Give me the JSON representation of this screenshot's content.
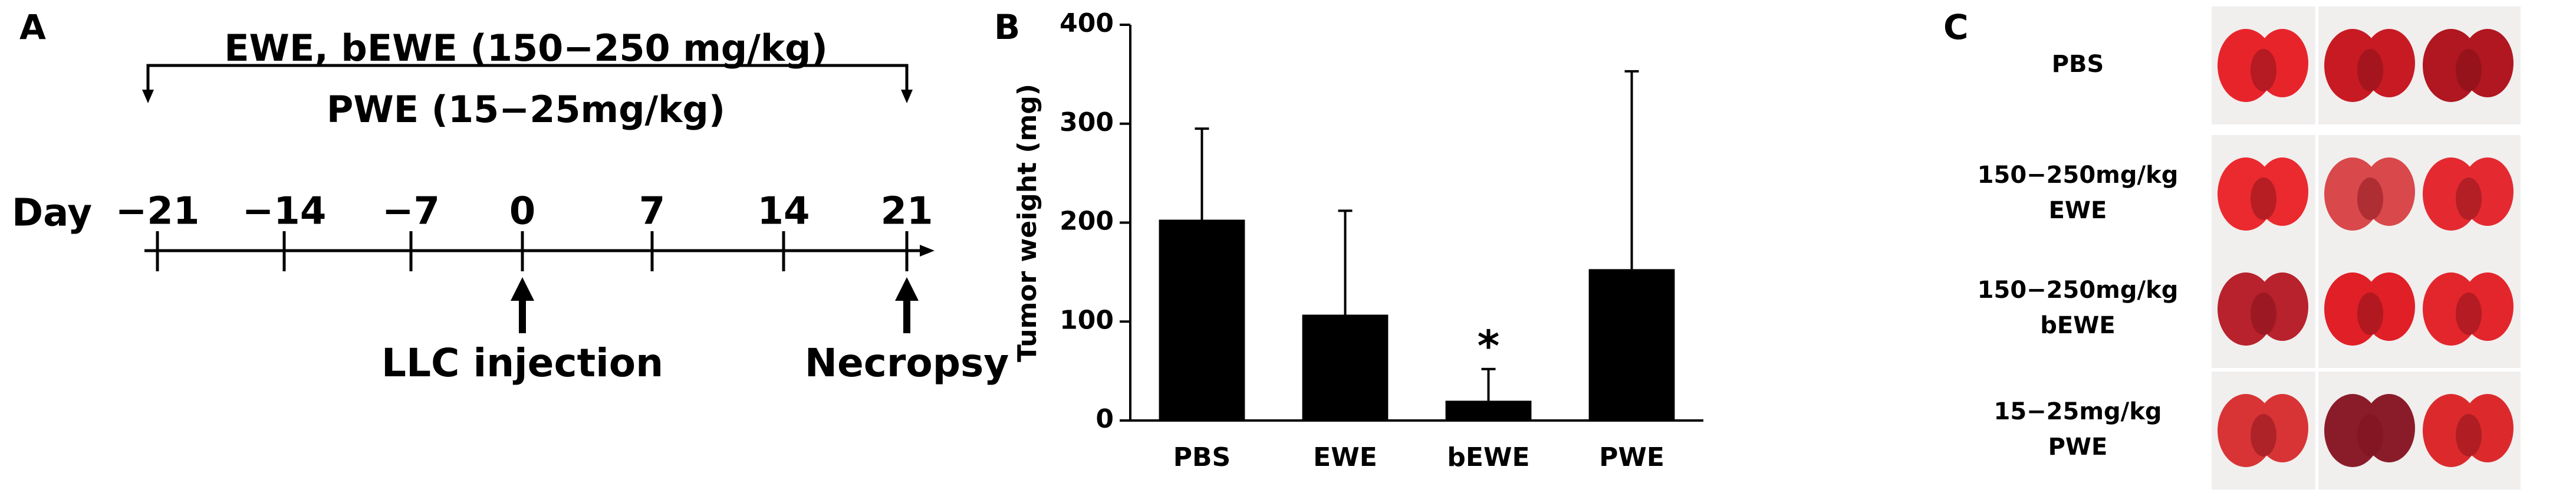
{
  "panel_a": {
    "label": "A",
    "bracket_top": "EWE, bEWE (150−250 mg/kg)",
    "bracket_bottom": "PWE (15−25mg/kg)",
    "axis_title": "Day",
    "days": [
      "−21",
      "−14",
      "−7",
      "0",
      "7",
      "14",
      "21"
    ],
    "event_1": "LLC injection",
    "event_2": "Necropsy"
  },
  "chart_data": {
    "type": "bar",
    "label": "B",
    "y_label": "Tumor weight (mg)",
    "categories": [
      "PBS",
      "EWE",
      "bEWE",
      "PWE"
    ],
    "values": [
      203,
      107,
      20,
      153
    ],
    "errors": [
      92,
      105,
      32,
      200
    ],
    "star_labels": [
      null,
      null,
      "*",
      null
    ],
    "color": "#000000",
    "ylim": [
      0,
      400
    ],
    "yticks": [
      0,
      100,
      200,
      300,
      400
    ],
    "grid": false
  },
  "panel_c": {
    "label": "C",
    "rows": [
      {
        "label_lines": [
          "PBS"
        ]
      },
      {
        "label_lines": [
          "150−250mg/kg",
          "EWE"
        ]
      },
      {
        "label_lines": [
          "150−250mg/kg",
          "bEWE"
        ]
      },
      {
        "label_lines": [
          "15−25mg/kg",
          "PWE"
        ]
      }
    ]
  }
}
